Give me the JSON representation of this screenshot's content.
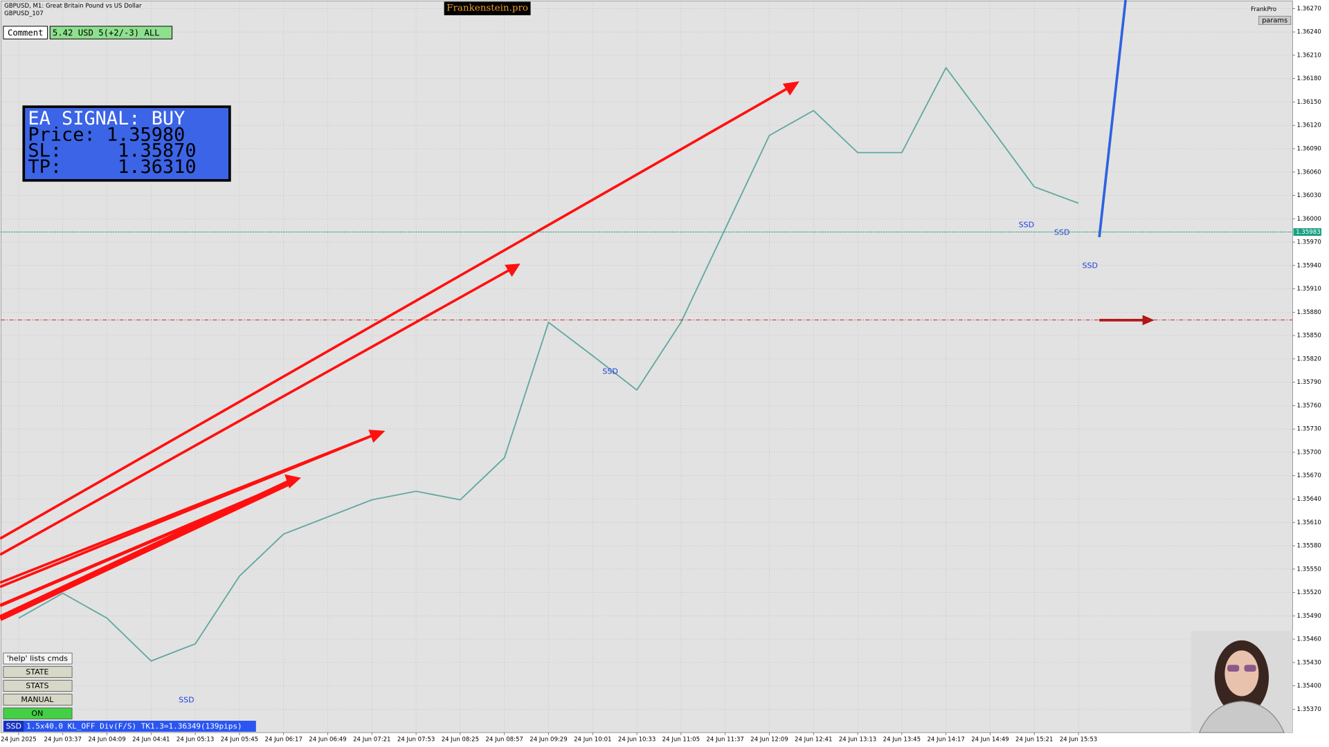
{
  "ui": {
    "symbol_line": "GBPUSD, M1:  Great Britain Pound vs US Dollar",
    "account_line": "GBPUSD_107",
    "brand": "Frankenstein.pro",
    "comment_label": "Comment",
    "comment_value": "5.42 USD 5(+2/-3) ALL",
    "signal": [
      "EA SIGNAL: BUY",
      "Price: 1.35980",
      "SL:     1.35870",
      "TP:     1.36310"
    ],
    "user": "FrankPro",
    "params": "params",
    "help": "'help' lists cmds",
    "buttons": [
      "STATE",
      "STATS",
      "MANUAL",
      "ON"
    ],
    "status_tag": "SSD",
    "status_text": "1.5x40.0 KL_OFF Div(F/S) TK1.3=1.36349(139pips)",
    "ssd_labels": [
      "SSD",
      "SSD",
      "SSD",
      "SSD",
      "SSD"
    ]
  },
  "chart_data": {
    "type": "line",
    "categories": [
      "24 Jun 2025",
      "24 Jun 03:37",
      "24 Jun 04:09",
      "24 Jun 04:41",
      "24 Jun 05:13",
      "24 Jun 05:45",
      "24 Jun 06:17",
      "24 Jun 06:49",
      "24 Jun 07:21",
      "24 Jun 07:53",
      "24 Jun 08:25",
      "24 Jun 08:57",
      "24 Jun 09:29",
      "24 Jun 10:01",
      "24 Jun 10:33",
      "24 Jun 11:05",
      "24 Jun 11:37",
      "24 Jun 12:09",
      "24 Jun 12:41",
      "24 Jun 13:13",
      "24 Jun 13:45",
      "24 Jun 14:17",
      "24 Jun 14:49",
      "24 Jun 15:21",
      "24 Jun 15:53"
    ],
    "series": [
      {
        "name": "GBPUSD",
        "color": "#5fa8a0",
        "values": [
          1.35487,
          1.35519,
          1.35487,
          1.35432,
          1.35454,
          1.35541,
          1.35595,
          1.35617,
          1.35639,
          1.3565,
          1.35639,
          1.35693,
          1.35867,
          1.35824,
          1.3578,
          1.35867,
          1.35987,
          1.36107,
          1.36139,
          1.36085,
          1.36085,
          1.36194,
          1.36118,
          1.36041,
          1.3602
        ]
      }
    ],
    "current_price": 1.35983,
    "sl_line": 1.3587,
    "ylim": [
      1.3534,
      1.36281
    ],
    "yticks": [
      {
        "value": 1.3627,
        "label": "1.36270"
      },
      {
        "value": 1.3624,
        "label": "1.36240"
      },
      {
        "value": 1.3621,
        "label": "1.36210"
      },
      {
        "value": 1.3618,
        "label": "1.36180"
      },
      {
        "value": 1.3615,
        "label": "1.36150"
      },
      {
        "value": 1.3612,
        "label": "1.36120"
      },
      {
        "value": 1.3609,
        "label": "1.36090"
      },
      {
        "value": 1.3606,
        "label": "1.36060"
      },
      {
        "value": 1.3603,
        "label": "1.36030"
      },
      {
        "value": 1.36,
        "label": "1.36000"
      },
      {
        "value": 1.3597,
        "label": "1.35970"
      },
      {
        "value": 1.3594,
        "label": "1.35940"
      },
      {
        "value": 1.3591,
        "label": "1.35910"
      },
      {
        "value": 1.3588,
        "label": "1.35880"
      },
      {
        "value": 1.3585,
        "label": "1.35850"
      },
      {
        "value": 1.3582,
        "label": "1.35820"
      },
      {
        "value": 1.3579,
        "label": "1.35790"
      },
      {
        "value": 1.3576,
        "label": "1.35760"
      },
      {
        "value": 1.3573,
        "label": "1.35730"
      },
      {
        "value": 1.357,
        "label": "1.35700"
      },
      {
        "value": 1.3567,
        "label": "1.35670"
      },
      {
        "value": 1.3564,
        "label": "1.35640"
      },
      {
        "value": 1.3561,
        "label": "1.35610"
      },
      {
        "value": 1.3558,
        "label": "1.35580"
      },
      {
        "value": 1.3555,
        "label": "1.35550"
      },
      {
        "value": 1.3552,
        "label": "1.35520"
      },
      {
        "value": 1.3549,
        "label": "1.35490"
      },
      {
        "value": 1.3546,
        "label": "1.35460"
      },
      {
        "value": 1.3543,
        "label": "1.35430"
      },
      {
        "value": 1.354,
        "label": "1.35400"
      },
      {
        "value": 1.3537,
        "label": "1.35370"
      }
    ],
    "grid": true
  }
}
